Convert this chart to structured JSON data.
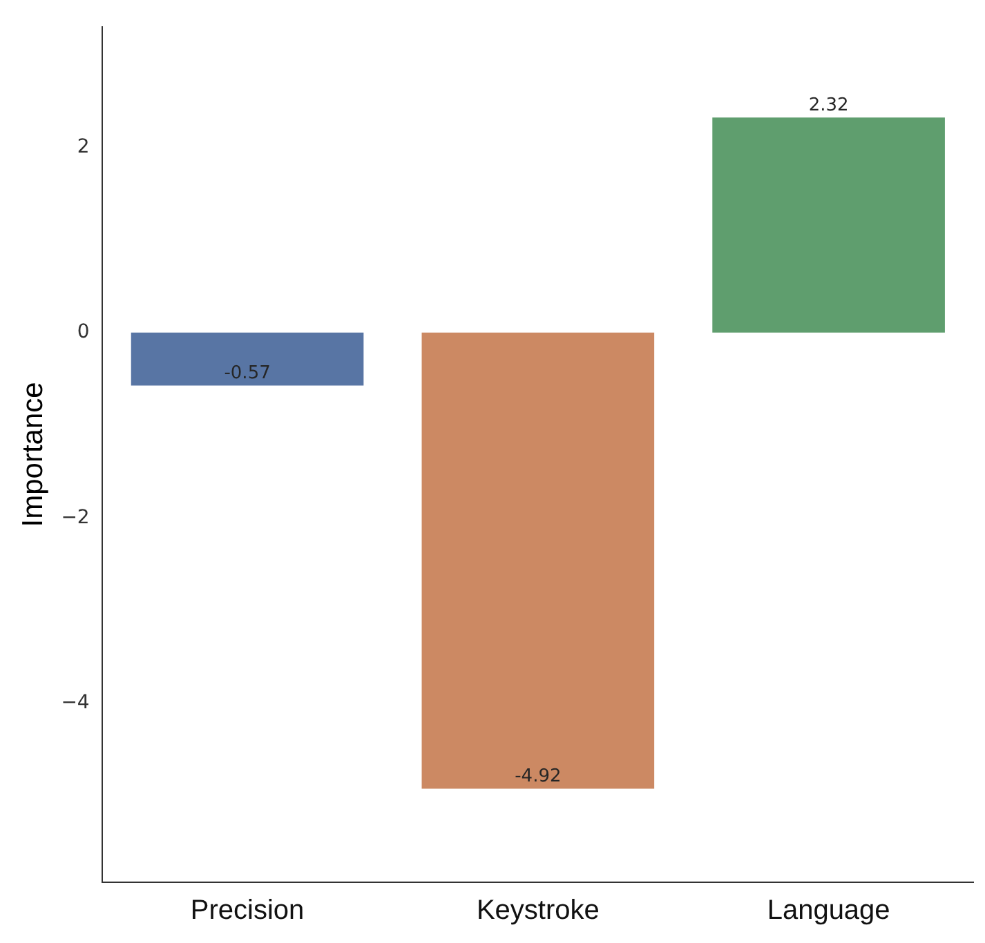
{
  "chart_data": {
    "type": "bar",
    "ylabel": "Importance",
    "categories": [
      "Precision",
      "Keystroke",
      "Language"
    ],
    "values": [
      -0.57,
      -4.92,
      2.32
    ],
    "colors": [
      "#5875a4",
      "#cc8963",
      "#5f9e6e"
    ],
    "ylim": [
      -5.93,
      3.3
    ],
    "yticks": [
      {
        "value": -4,
        "label": "−4"
      },
      {
        "value": -2,
        "label": "−2"
      },
      0,
      2
    ],
    "data_labels": true,
    "grid": false,
    "legend": false
  }
}
